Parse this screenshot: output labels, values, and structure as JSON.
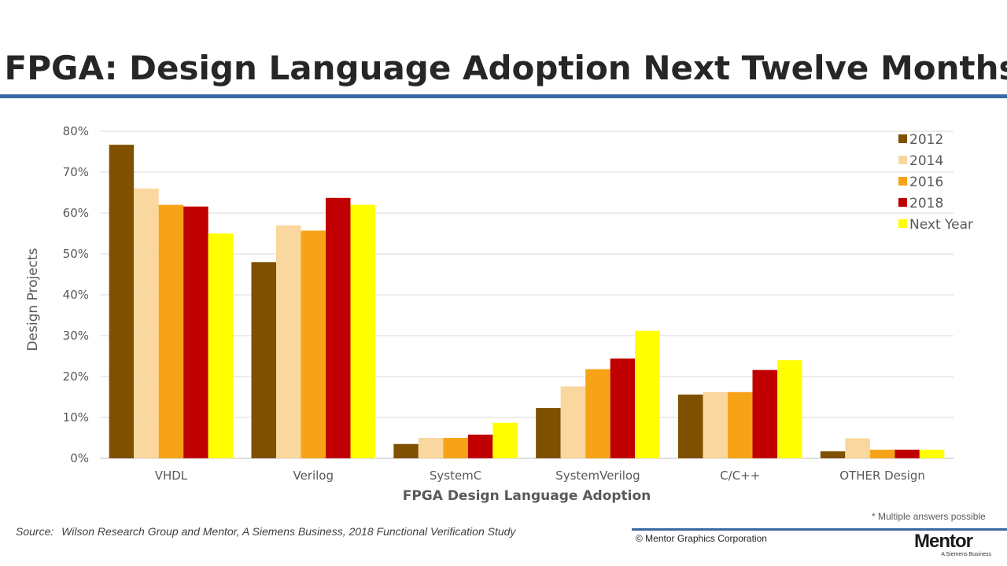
{
  "slide": {
    "title": "FPGA: Design Language Adoption Next Twelve Months",
    "footnote": "* Multiple answers possible",
    "source_label": "Source:",
    "source_text": "Wilson Research Group and Mentor, A Siemens Business, 2018 Functional Verification Study",
    "copyright": "© Mentor Graphics Corporation",
    "logo_word": "Mentor",
    "logo_tagline": "A Siemens Business"
  },
  "chart_data": {
    "type": "bar",
    "xlabel": "FPGA Design Language Adoption",
    "ylabel": "Design Projects",
    "ylim": [
      0,
      80
    ],
    "yticks": [
      0,
      10,
      20,
      30,
      40,
      50,
      60,
      70,
      80
    ],
    "ytick_labels": [
      "0%",
      "10%",
      "20%",
      "30%",
      "40%",
      "50%",
      "60%",
      "70%",
      "80%"
    ],
    "grid": true,
    "legend_position": "top-right",
    "categories": [
      "VHDL",
      "Verilog",
      "SystemC",
      "SystemVerilog",
      "C/C++",
      "OTHER Design"
    ],
    "series": [
      {
        "name": "2012",
        "color": "#7f5000",
        "values": [
          76.7,
          48,
          3.5,
          12.3,
          15.6,
          1.7
        ]
      },
      {
        "name": "2014",
        "color": "#fad79e",
        "values": [
          66,
          57,
          5,
          17.6,
          16.2,
          4.9
        ]
      },
      {
        "name": "2016",
        "color": "#f6a318",
        "values": [
          62,
          55.7,
          5,
          21.8,
          16.2,
          2.1
        ]
      },
      {
        "name": "2018",
        "color": "#c00000",
        "values": [
          61.6,
          63.7,
          5.8,
          24.4,
          21.6,
          2.1
        ]
      },
      {
        "name": "Next Year",
        "color": "#ffff00",
        "values": [
          55,
          62,
          8.7,
          31.2,
          24,
          2.1
        ]
      }
    ]
  }
}
